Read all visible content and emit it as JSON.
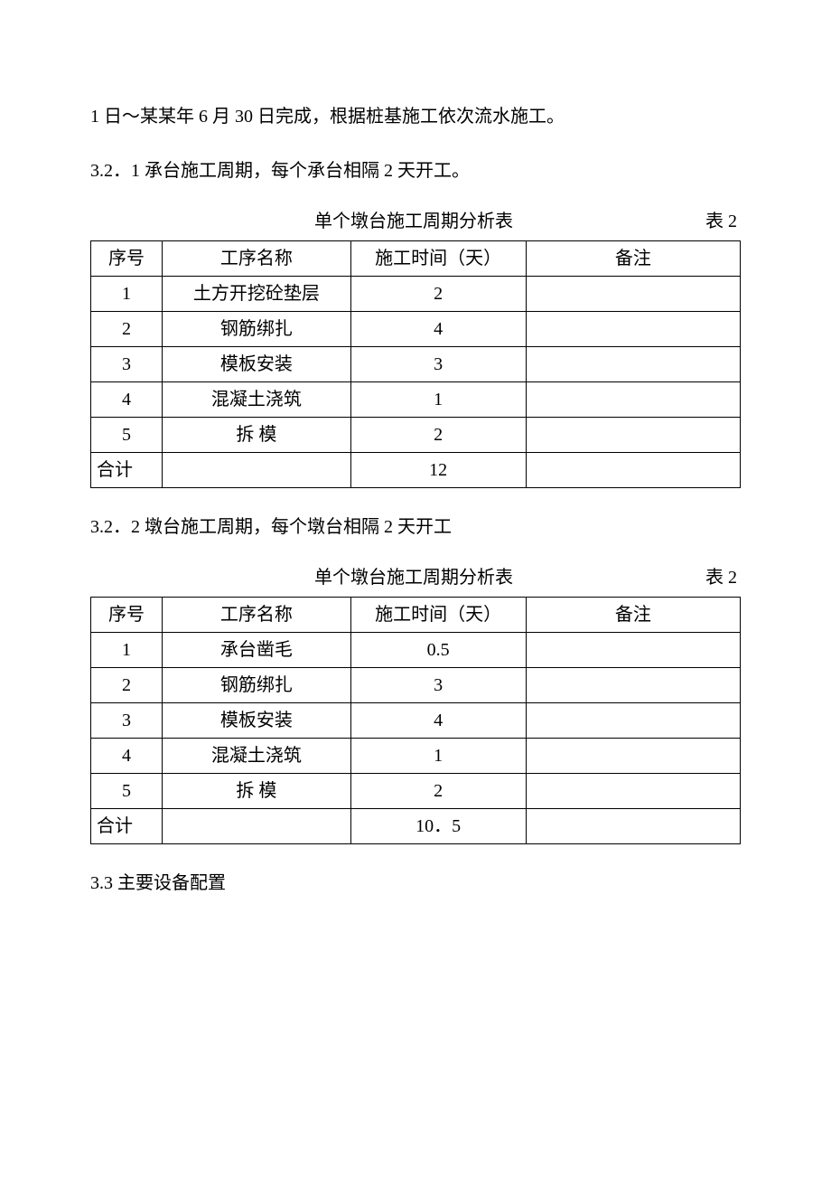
{
  "intro": "1 日～某某年 6 月 30 日完成，根据桩基施工依次流水施工。",
  "sec321": "3.2．1 承台施工周期，每个承台相隔 2 天开工。",
  "table1": {
    "caption": "单个墩台施工周期分析表",
    "label": "表 2",
    "headers": {
      "seq": "序号",
      "name": "工序名称",
      "time": "施工时间（天）",
      "note": "备注"
    },
    "rows": [
      {
        "seq": "1",
        "name": "土方开挖砼垫层",
        "time": "2",
        "note": ""
      },
      {
        "seq": "2",
        "name": "钢筋绑扎",
        "time": "4",
        "note": ""
      },
      {
        "seq": "3",
        "name": "模板安装",
        "time": "3",
        "note": ""
      },
      {
        "seq": "4",
        "name": "混凝土浇筑",
        "time": "1",
        "note": ""
      },
      {
        "seq": "5",
        "name": "拆 模",
        "time": "2",
        "note": ""
      }
    ],
    "total": {
      "label": "合计",
      "value": "12"
    }
  },
  "sec322": "3.2．2 墩台施工周期，每个墩台相隔 2 天开工",
  "table2": {
    "caption": "单个墩台施工周期分析表",
    "label": "表 2",
    "headers": {
      "seq": "序号",
      "name": "工序名称",
      "time": "施工时间（天）",
      "note": "备注"
    },
    "rows": [
      {
        "seq": "1",
        "name": "承台凿毛",
        "time": "0.5",
        "note": ""
      },
      {
        "seq": "2",
        "name": "钢筋绑扎",
        "time": "3",
        "note": ""
      },
      {
        "seq": "3",
        "name": "模板安装",
        "time": "4",
        "note": ""
      },
      {
        "seq": "4",
        "name": "混凝土浇筑",
        "time": "1",
        "note": ""
      },
      {
        "seq": "5",
        "name": "拆 模",
        "time": "2",
        "note": ""
      }
    ],
    "total": {
      "label": "合计",
      "value": "10．5"
    }
  },
  "sec33": "3.3 主要设备配置"
}
